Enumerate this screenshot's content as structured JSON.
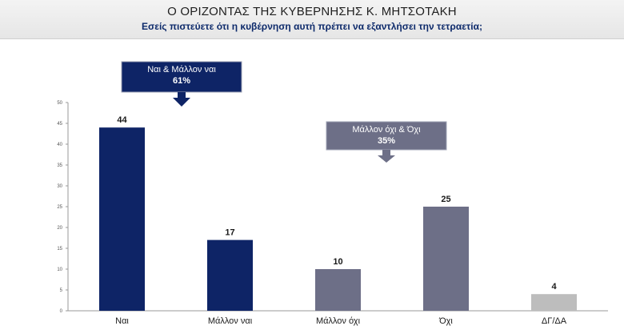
{
  "header": {
    "title": "Ο ΟΡΙΖΟΝΤΑΣ ΤΗΣ ΚΥΒΕΡΝΗΣΗΣ Κ. ΜΗΤΣΟΤΑΚΗ",
    "subtitle": "Εσείς πιστεύετε ότι η κυβέρνηση αυτή πρέπει να εξαντλήσει την τετραετία;"
  },
  "callouts": [
    {
      "label": "Ναι & Μάλλον ναι",
      "value": "61%",
      "color": "#0e2466"
    },
    {
      "label": "Μάλλον όχι & Όχι",
      "value": "35%",
      "color": "#6d6f87"
    }
  ],
  "chart_data": {
    "type": "bar",
    "categories": [
      "Ναι",
      "Μάλλον ναι",
      "Μάλλον όχι",
      "Όχι",
      "ΔΓ/ΔΑ"
    ],
    "values": [
      44,
      17,
      10,
      25,
      4
    ],
    "colors": [
      "#0e2466",
      "#0e2466",
      "#6d6f87",
      "#6d6f87",
      "#bdbdbd"
    ],
    "ylim": [
      0,
      50
    ],
    "yticks": [
      0,
      5,
      10,
      15,
      20,
      25,
      30,
      35,
      40,
      45,
      50
    ],
    "grid": false,
    "title": "",
    "xlabel": "",
    "ylabel": ""
  }
}
